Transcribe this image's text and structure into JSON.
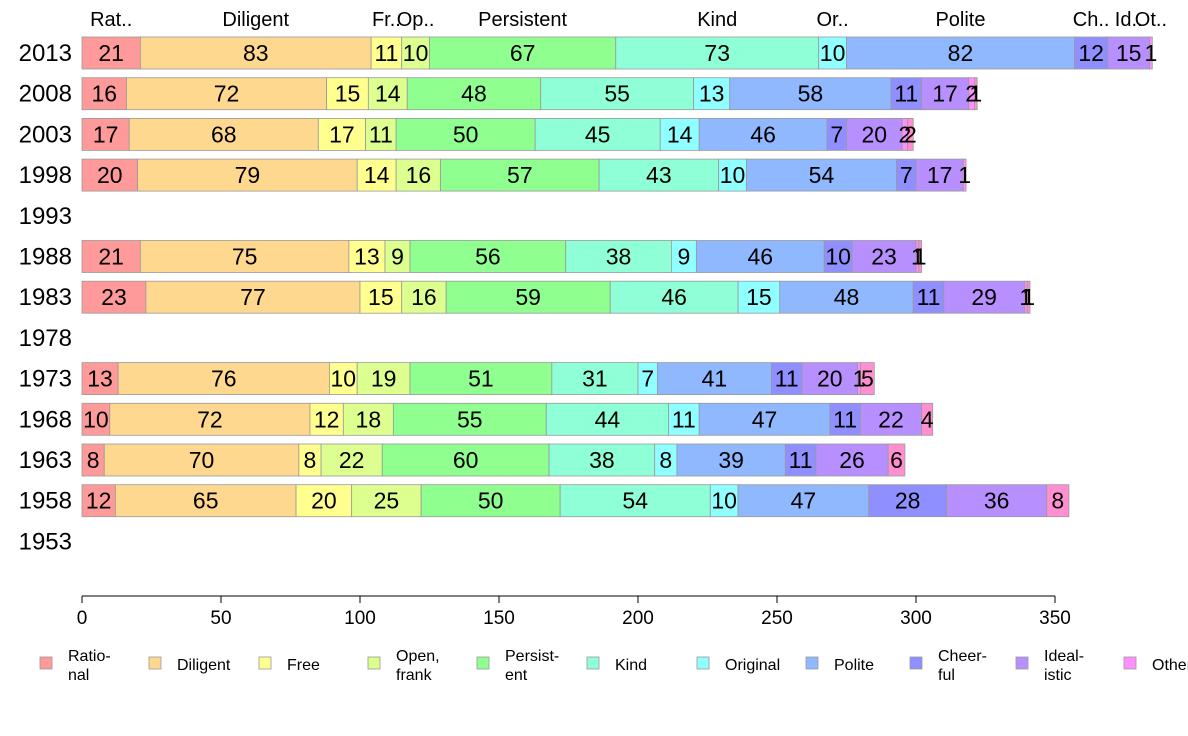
{
  "chart_data": {
    "type": "bar",
    "orientation": "horizontal",
    "stacked": true,
    "xlim": [
      0,
      360
    ],
    "x_ticks": [
      0,
      50,
      100,
      150,
      200,
      250,
      300,
      350
    ],
    "legend_position": "bottom",
    "categories": [
      "2013",
      "2008",
      "2003",
      "1998",
      "1993",
      "1988",
      "1983",
      "1978",
      "1973",
      "1968",
      "1963",
      "1958",
      "1953"
    ],
    "top_labels": [
      "Rat..",
      "Diligent",
      "Fr..",
      "Op..",
      "Persistent",
      "Kind",
      "Or..",
      "Polite",
      "Ch..",
      "Id..",
      "Ot.."
    ],
    "series": [
      {
        "name": "Ratio-nal",
        "legend_lines": [
          "Ratio-",
          "nal"
        ],
        "color": "#ff9a9a",
        "values": [
          21,
          16,
          17,
          20,
          null,
          21,
          23,
          null,
          13,
          10,
          8,
          12,
          null
        ]
      },
      {
        "name": "Diligent",
        "legend_lines": [
          "Diligent"
        ],
        "color": "#ffd88f",
        "values": [
          83,
          72,
          68,
          79,
          null,
          75,
          77,
          null,
          76,
          72,
          70,
          65,
          null
        ]
      },
      {
        "name": "Free",
        "legend_lines": [
          "Free"
        ],
        "color": "#ffff8f",
        "values": [
          11,
          15,
          17,
          14,
          null,
          13,
          15,
          null,
          10,
          12,
          8,
          20,
          null
        ]
      },
      {
        "name": "Open, frank",
        "legend_lines": [
          "Open,",
          "frank"
        ],
        "color": "#dcff8f",
        "values": [
          10,
          14,
          11,
          16,
          null,
          9,
          16,
          null,
          19,
          18,
          22,
          25,
          null
        ]
      },
      {
        "name": "Persist-ent",
        "legend_lines": [
          "Persist-",
          "ent"
        ],
        "color": "#8fff8f",
        "values": [
          67,
          48,
          50,
          57,
          null,
          56,
          59,
          null,
          51,
          55,
          60,
          50,
          null
        ]
      },
      {
        "name": "Kind",
        "legend_lines": [
          "Kind"
        ],
        "color": "#8fffd8",
        "values": [
          73,
          55,
          45,
          43,
          null,
          38,
          46,
          null,
          31,
          44,
          38,
          54,
          null
        ]
      },
      {
        "name": "Original",
        "legend_lines": [
          "Original"
        ],
        "color": "#8fffff",
        "values": [
          10,
          13,
          14,
          10,
          null,
          9,
          15,
          null,
          7,
          11,
          8,
          10,
          null
        ]
      },
      {
        "name": "Polite",
        "legend_lines": [
          "Polite"
        ],
        "color": "#8fb8ff",
        "values": [
          82,
          58,
          46,
          54,
          null,
          46,
          48,
          null,
          41,
          47,
          39,
          47,
          null
        ]
      },
      {
        "name": "Cheer-ful",
        "legend_lines": [
          "Cheer-",
          "ful"
        ],
        "color": "#8f8fff",
        "values": [
          12,
          11,
          7,
          7,
          null,
          10,
          11,
          null,
          11,
          11,
          11,
          28,
          null
        ]
      },
      {
        "name": "Ideal-istic",
        "legend_lines": [
          "Ideal-",
          "istic"
        ],
        "color": "#b88fff",
        "values": [
          15,
          17,
          20,
          17,
          null,
          23,
          29,
          null,
          20,
          22,
          26,
          36,
          null
        ]
      },
      {
        "name": "Other",
        "legend_lines": [
          "Other"
        ],
        "color": "#ff8fff",
        "values": [
          1,
          2,
          2,
          1,
          null,
          1,
          1,
          null,
          1,
          0,
          0,
          0,
          null
        ]
      },
      {
        "name": "",
        "legend_lines": [],
        "color": "#ff8fd0",
        "values": [
          0,
          1,
          2,
          0,
          null,
          1,
          1,
          null,
          5,
          4,
          6,
          8,
          null
        ]
      }
    ]
  }
}
